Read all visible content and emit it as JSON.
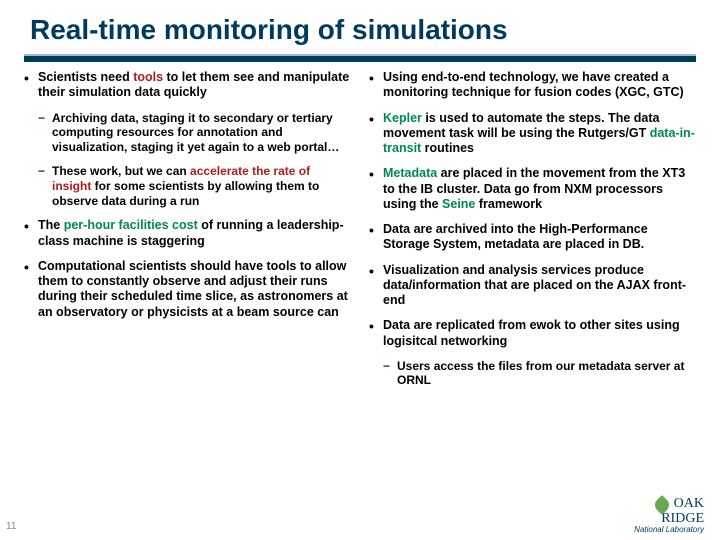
{
  "title": "Real-time monitoring of simulations",
  "pageNumber": "11",
  "logo": {
    "line1": "OAK",
    "line2": "RIDGE",
    "sub": "National Laboratory"
  },
  "left": [
    {
      "lvl": "top",
      "segs": [
        [
          "",
          "Scientists need "
        ],
        [
          "hl-red",
          "tools"
        ],
        [
          "",
          " to let them see and manipulate their simulation data quickly"
        ]
      ]
    },
    {
      "lvl": "sub",
      "segs": [
        [
          "",
          "Archiving data, staging it to secondary or tertiary computing resources for annotation and visualization, staging it yet again to a web portal…"
        ]
      ]
    },
    {
      "lvl": "sub",
      "segs": [
        [
          "",
          "These work, but we can "
        ],
        [
          "hl-red",
          "accelerate the rate of insight"
        ],
        [
          "",
          " for some scientists by allowing them to observe data during a run"
        ]
      ]
    },
    {
      "lvl": "top",
      "segs": [
        [
          "",
          "The "
        ],
        [
          "hl-green",
          "per-hour facilities cost"
        ],
        [
          "",
          " of running a leadership-class machine is staggering"
        ]
      ]
    },
    {
      "lvl": "top",
      "segs": [
        [
          "",
          "Computational scientists should have tools to allow them to constantly observe and adjust their runs during their scheduled time slice, as astronomers at an observatory or physicists at a beam source can"
        ]
      ]
    }
  ],
  "right": [
    {
      "lvl": "top",
      "segs": [
        [
          "",
          "Using end-to-end technology, we have created a monitoring technique for fusion codes (XGC, GTC)"
        ]
      ]
    },
    {
      "lvl": "top",
      "segs": [
        [
          "hl-green",
          "Kepler"
        ],
        [
          "",
          " is used to automate the steps. The data movement task will be using the Rutgers/GT "
        ],
        [
          "hl-green",
          "data-in-transit"
        ],
        [
          "",
          " routines"
        ]
      ]
    },
    {
      "lvl": "top",
      "segs": [
        [
          "hl-green",
          "Metadata"
        ],
        [
          "",
          " are placed in the movement from the XT3 to the IB cluster. Data go from NXM processors using the "
        ],
        [
          "hl-green",
          "Seine"
        ],
        [
          "",
          " framework"
        ]
      ]
    },
    {
      "lvl": "top",
      "segs": [
        [
          "",
          "Data are archived into the High-Performance Storage System, metadata are placed in DB."
        ]
      ]
    },
    {
      "lvl": "top",
      "segs": [
        [
          "",
          "Visualization and analysis services produce data/information that are placed on the AJAX front-end"
        ]
      ]
    },
    {
      "lvl": "top",
      "segs": [
        [
          "",
          "Data are replicated from ewok to other sites using logisitcal networking"
        ]
      ]
    },
    {
      "lvl": "sub",
      "segs": [
        [
          "",
          "Users access the files from our metadata server at ORNL"
        ]
      ]
    }
  ]
}
